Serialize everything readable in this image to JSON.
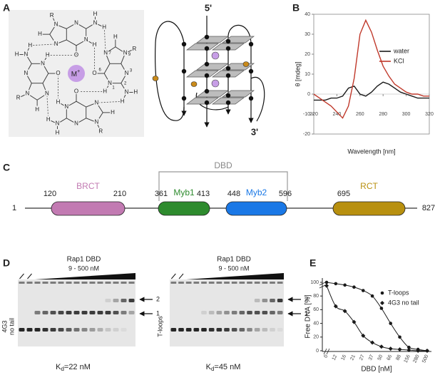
{
  "panel_labels": [
    "A",
    "B",
    "C",
    "D",
    "E"
  ],
  "panel_a": {
    "quartet": [
      [
        "N",
        "H",
        "N",
        "N",
        "N",
        "R",
        "O",
        "N",
        "H",
        "H",
        "H"
      ],
      [
        "N",
        "H",
        "N",
        "N",
        "N",
        "R",
        "O",
        "N",
        "H",
        "H",
        "H"
      ],
      [
        "N",
        "H",
        "N",
        "N",
        "N",
        "R",
        "O",
        "N",
        "H",
        "H",
        "H"
      ],
      [
        "N",
        "H",
        "N",
        "N",
        "N",
        "R",
        "O",
        "N",
        "H",
        "H",
        "H"
      ]
    ],
    "ring_numbers": [
      "1",
      "2",
      "3",
      "6",
      "7",
      "9"
    ],
    "metal": "M",
    "metal_charge": "+",
    "strand_start": "5'",
    "strand_end": "3'"
  },
  "chart_data": [
    {
      "type": "line",
      "x": [
        220,
        225,
        230,
        235,
        240,
        245,
        250,
        255,
        260,
        265,
        270,
        275,
        280,
        285,
        290,
        295,
        300,
        305,
        310,
        315,
        320
      ],
      "series": [
        {
          "name": "water",
          "color": "#1a1a1a",
          "values": [
            -3,
            -3,
            -3,
            -2,
            -2,
            -1,
            3,
            4,
            0,
            -1,
            1,
            4,
            6,
            5,
            3,
            1,
            0,
            -1,
            -2,
            -2,
            -2
          ]
        },
        {
          "name": "KCl",
          "color": "#c0392b",
          "values": [
            0,
            -2,
            -4,
            -6,
            -9,
            -12,
            -6,
            8,
            30,
            37,
            31,
            22,
            14,
            9,
            5,
            3,
            1,
            0,
            0,
            -1,
            -1
          ]
        }
      ],
      "xlim": [
        220,
        320
      ],
      "ylim": [
        -20,
        40
      ],
      "xticks": [
        220,
        240,
        260,
        280,
        300,
        320
      ],
      "yticks": [
        -20,
        -10,
        0,
        10,
        20,
        30,
        40
      ],
      "xlabel": "Wavelength [nm]",
      "ylabel": "θ [mdeg]"
    },
    {
      "type": "scatter",
      "categories": [
        "0",
        "12",
        "16",
        "21",
        "27",
        "37",
        "50",
        "66",
        "88",
        "156",
        "280",
        "500"
      ],
      "series": [
        {
          "name": "T-loops",
          "marker": "circle",
          "color": "#1a1a1a",
          "values": [
            100,
            98,
            96,
            93,
            88,
            80,
            62,
            40,
            20,
            5,
            2,
            0
          ]
        },
        {
          "name": "4G3 no tail",
          "marker": "diamond",
          "color": "#1a1a1a",
          "values": [
            95,
            65,
            58,
            42,
            22,
            12,
            6,
            3,
            2,
            1,
            0,
            0
          ]
        }
      ],
      "ylim": [
        0,
        100
      ],
      "yticks": [
        0,
        20,
        40,
        60,
        80,
        100
      ],
      "xlabel": "DBD [nM]",
      "ylabel": "Free DNA [%]"
    }
  ],
  "panel_c": {
    "dbd_label": "DBD",
    "protein_start": 1,
    "protein_end": 827,
    "domains": [
      {
        "name": "BRCT",
        "start": 120,
        "end": 210,
        "color": "#c27ab2"
      },
      {
        "name": "Myb1",
        "start": 361,
        "end": 413,
        "color": "#2e8b2e"
      },
      {
        "name": "Myb2",
        "start": 448,
        "end": 596,
        "color": "#1a78e6"
      },
      {
        "name": "RCT",
        "start": 695,
        "end": null,
        "color": "#b8900f"
      }
    ]
  },
  "panel_d": {
    "gels": [
      {
        "title": "Rap1 DBD",
        "range": "9 - 500 nM",
        "sample": [
          "4G3",
          "no tail"
        ],
        "kd_symbol": "K",
        "kd_sub": "d",
        "kd_value": "=22 nM",
        "bands": [
          "2",
          "1"
        ]
      },
      {
        "title": "Rap1 DBD",
        "range": "9 - 500 nM",
        "sample": [
          "T-loops"
        ],
        "kd_symbol": "K",
        "kd_sub": "d",
        "kd_value": "=45 nM",
        "bands": [
          "2",
          "1"
        ]
      }
    ]
  }
}
